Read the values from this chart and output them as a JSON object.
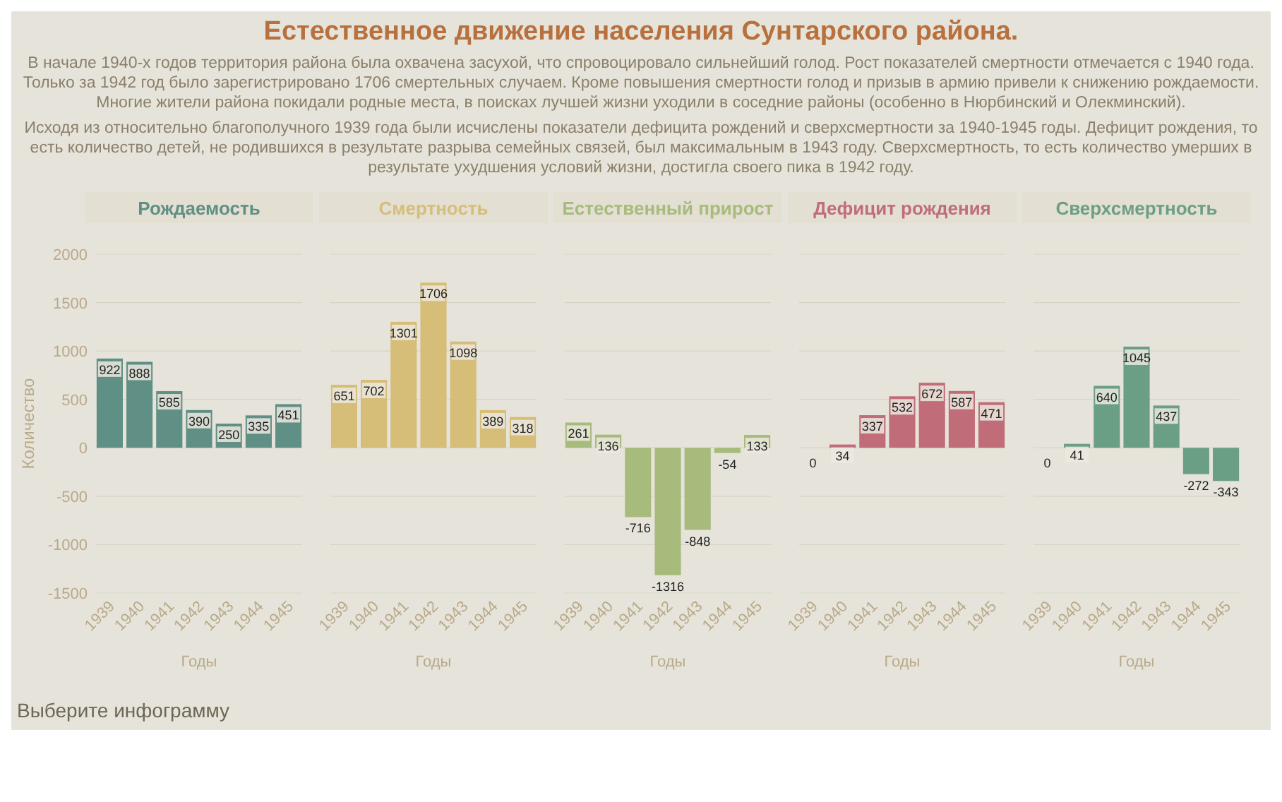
{
  "chart_data": [
    {
      "type": "bar",
      "title": "Рождаемость",
      "annotations": [
        "Естественное движение населения Сунтарского района.",
        "В начале 1940-х годов территория района была охвачена засухой, что спровоцировало сильнейший голод. Рост показателей смертности отмечается с 1940 года. Только за 1942 год было зарегистрировано 1706 смертельных случаем. Кроме повышения смертности голод и призыв в армию привели к снижению рождаемости. Многие жители района покидали родные места, в поисках лучшей жизни уходили в соседние районы (особенно в Нюрбинский и Олекминский).",
        "Исходя из относительно благополучного 1939 года были исчислены показатели дефицита рождений и сверхсмертности за 1940-1945 годы. Дефицит рождения, то есть количество детей, не родившихся в результате разрыва семейных связей, был максимальным в 1943 году. Сверхсмертность, то есть количество умерших в результате ухудшения условий жизни, достигла своего пика в 1942 году.",
        "Выберите инфограмму"
      ],
      "xlabel": "Годы",
      "ylabel": "Количество",
      "categories": [
        "1939",
        "1940",
        "1941",
        "1942",
        "1943",
        "1944",
        "1945"
      ],
      "values": [
        922,
        888,
        585,
        390,
        250,
        335,
        451
      ],
      "color": "#5f8f85",
      "ylim": [
        -1500,
        2000
      ],
      "yticks": [
        -1500,
        -1000,
        -500,
        0,
        500,
        1000,
        1500,
        2000
      ],
      "grid": "y",
      "data_labels": true
    },
    {
      "type": "bar",
      "title": "Смертность",
      "xlabel": "Годы",
      "categories": [
        "1939",
        "1940",
        "1941",
        "1942",
        "1943",
        "1944",
        "1945"
      ],
      "values": [
        651,
        702,
        1301,
        1706,
        1098,
        389,
        318
      ],
      "color": "#d6bd78",
      "ylim": [
        -1500,
        2000
      ],
      "yticks": [
        -1500,
        -1000,
        -500,
        0,
        500,
        1000,
        1500,
        2000
      ],
      "grid": "y",
      "tick_labels": "x",
      "data_labels": true
    },
    {
      "type": "bar",
      "title": "Естественный прирост",
      "xlabel": "Годы",
      "categories": [
        "1939",
        "1940",
        "1941",
        "1942",
        "1943",
        "1944",
        "1945"
      ],
      "values": [
        261,
        136,
        -716,
        -1316,
        -848,
        -54,
        133
      ],
      "color": "#a6bb7c",
      "ylim": [
        -1500,
        2000
      ],
      "yticks": [
        -1500,
        -1000,
        -500,
        0,
        500,
        1000,
        1500,
        2000
      ],
      "grid": "y",
      "tick_labels": "x",
      "data_labels": true
    },
    {
      "type": "bar",
      "title": "Дефицит рождения",
      "xlabel": "Годы",
      "categories": [
        "1939",
        "1940",
        "1941",
        "1942",
        "1943",
        "1944",
        "1945"
      ],
      "values": [
        0,
        34,
        337,
        532,
        672,
        587,
        471
      ],
      "color": "#c06c79",
      "ylim": [
        -1500,
        2000
      ],
      "yticks": [
        -1500,
        -1000,
        -500,
        0,
        500,
        1000,
        1500,
        2000
      ],
      "grid": "y",
      "tick_labels": "x",
      "data_labels": true
    },
    {
      "type": "bar",
      "title": "Сверхсмертность",
      "xlabel": "Годы",
      "categories": [
        "1939",
        "1940",
        "1941",
        "1942",
        "1943",
        "1944",
        "1945"
      ],
      "values": [
        0,
        41,
        640,
        1045,
        437,
        -272,
        -343
      ],
      "color": "#6b9f85",
      "ylim": [
        -1500,
        2000
      ],
      "yticks": [
        -1500,
        -1000,
        -500,
        0,
        500,
        1000,
        1500,
        2000
      ],
      "grid": "y",
      "tick_labels": "x",
      "data_labels": true
    }
  ]
}
